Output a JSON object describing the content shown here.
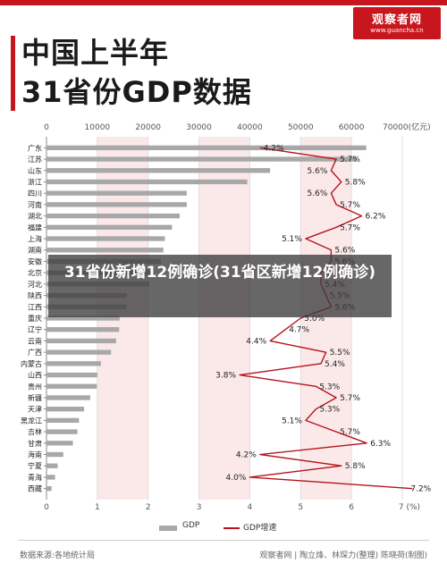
{
  "brand": {
    "name": "观察者网",
    "url": "www.guancha.cn"
  },
  "title": {
    "line1": "中国上半年",
    "line2": "31省份GDP数据"
  },
  "overlay_text": "31省份新增12例确诊(31省区新增12例确诊)",
  "legend": {
    "gdp": "GDP",
    "growth": "GDP增速"
  },
  "footer": {
    "source": "数据来源:各地统计局",
    "credit": "观察者网 | 陶立烽、林琛力(整理) 陈晓荷(制图)"
  },
  "colors": {
    "bar": "#a8a8a8",
    "line": "#b5141c",
    "accent": "#c7161e",
    "band": "#fbe9ea"
  },
  "chart_data": {
    "type": "bar",
    "title": "中国上半年 31省份GDP数据",
    "categories": [
      "广东",
      "江苏",
      "山东",
      "浙江",
      "四川",
      "河南",
      "湖北",
      "福建",
      "上海",
      "湖南",
      "安徽",
      "北京",
      "河北",
      "陕西",
      "江西",
      "重庆",
      "辽宁",
      "云南",
      "广西",
      "内蒙古",
      "山西",
      "贵州",
      "新疆",
      "天津",
      "黑龙江",
      "吉林",
      "甘肃",
      "海南",
      "宁夏",
      "青海",
      "西藏"
    ],
    "series": [
      {
        "name": "GDP",
        "axis": "top",
        "values": [
          62900,
          61000,
          44000,
          39500,
          27600,
          27600,
          26200,
          24700,
          23300,
          23000,
          22500,
          21100,
          20200,
          15800,
          15700,
          14400,
          14300,
          13700,
          12700,
          10700,
          10000,
          9900,
          8600,
          7400,
          6400,
          6100,
          5200,
          3300,
          2200,
          1700,
          1000
        ]
      },
      {
        "name": "GDP增速",
        "axis": "bottom",
        "values": [
          4.2,
          5.7,
          5.6,
          5.8,
          5.6,
          5.7,
          6.2,
          5.7,
          5.1,
          5.6,
          5.6,
          5.4,
          5.4,
          5.5,
          5.6,
          5.0,
          4.7,
          4.4,
          5.5,
          5.4,
          3.8,
          5.3,
          5.7,
          5.3,
          5.1,
          5.7,
          6.3,
          4.2,
          5.8,
          4.0,
          7.2
        ]
      }
    ],
    "xlim_top": [
      0,
      70000
    ],
    "xticks_top": [
      "0",
      "10000",
      "20000",
      "30000",
      "40000",
      "50000",
      "60000",
      "70000(亿元)"
    ],
    "xlim_bottom": [
      0,
      7
    ],
    "xticks_bottom": [
      "0",
      "1",
      "2",
      "3",
      "4",
      "5",
      "6",
      "7 (%)"
    ],
    "value_labels": [
      "4.2%",
      "5.7%",
      "5.6%",
      "5.8%",
      "5.6%",
      "5.7%",
      "6.2%",
      "5.7%",
      "5.1%",
      "5.6%",
      "5.6%",
      "5.4%",
      "5.4%",
      "5.5%",
      "5.6%",
      "5.0%",
      "4.7%",
      "4.4%",
      "5.5%",
      "5.4%",
      "3.8%",
      "5.3%",
      "5.7%",
      "5.3%",
      "5.1%",
      "5.7%",
      "6.3%",
      "4.2%",
      "5.8%",
      "4.0%",
      "7.2%"
    ],
    "grid": true
  }
}
